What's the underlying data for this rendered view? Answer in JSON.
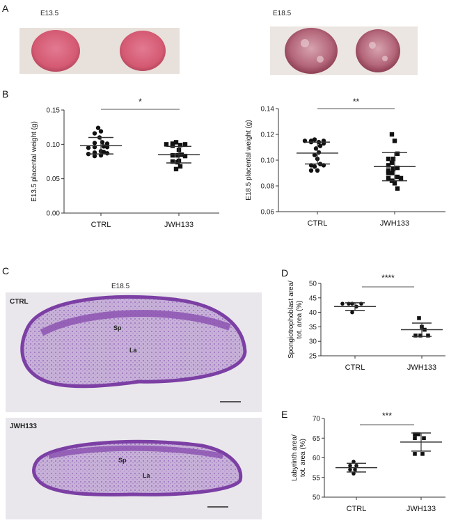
{
  "panels": {
    "a": "A",
    "b": "B",
    "c": "C",
    "d": "D",
    "e": "E"
  },
  "panel_a": {
    "left_label": "E13.5",
    "right_label": "E18.5"
  },
  "panel_c": {
    "title": "E18.5",
    "top_label": "CTRL",
    "bottom_label": "JWH133",
    "region_sp": "Sp",
    "region_la": "La"
  },
  "colors": {
    "placenta_e13": "#d9607a",
    "placenta_e18": "#b8707e",
    "stain": "#8a4fb0",
    "stain_light": "#c9b3d9",
    "sig_bar_light": "#aaaaaa"
  },
  "chart_data": [
    {
      "id": "b1",
      "type": "scatter",
      "ylabel": "E13.5 placental weight (g)",
      "categories": [
        "CTRL",
        "JWH133"
      ],
      "ylim": [
        0,
        0.15
      ],
      "yticks": [
        "0.00",
        "0.05",
        "0.10",
        "0.15"
      ],
      "significance": "*",
      "series": [
        {
          "marker": "circle",
          "values": [
            0.124,
            0.119,
            0.116,
            0.11,
            0.103,
            0.102,
            0.101,
            0.097,
            0.096,
            0.096,
            0.095,
            0.09,
            0.089,
            0.088,
            0.087,
            0.086,
            0.084,
            0.083
          ],
          "mean": 0.098,
          "sd": 0.012
        },
        {
          "marker": "square",
          "values": [
            0.103,
            0.101,
            0.1,
            0.1,
            0.099,
            0.098,
            0.092,
            0.085,
            0.084,
            0.084,
            0.083,
            0.076,
            0.075,
            0.074,
            0.068,
            0.064
          ],
          "mean": 0.085,
          "sd": 0.012
        }
      ]
    },
    {
      "id": "b2",
      "type": "scatter",
      "ylabel": "E18.5 placental weight (g)",
      "categories": [
        "CTRL",
        "JWH133"
      ],
      "ylim": [
        0.06,
        0.14
      ],
      "yticks": [
        "0.06",
        "0.08",
        "0.10",
        "0.12",
        "0.14"
      ],
      "significance": "**",
      "series": [
        {
          "marker": "circle",
          "values": [
            0.116,
            0.115,
            0.115,
            0.115,
            0.114,
            0.114,
            0.113,
            0.111,
            0.109,
            0.106,
            0.104,
            0.101,
            0.097,
            0.096,
            0.096,
            0.095,
            0.092,
            0.092
          ],
          "mean": 0.1055,
          "sd": 0.0085
        },
        {
          "marker": "square",
          "values": [
            0.12,
            0.115,
            0.105,
            0.101,
            0.101,
            0.098,
            0.096,
            0.094,
            0.093,
            0.092,
            0.09,
            0.09,
            0.087,
            0.086,
            0.086,
            0.084,
            0.082,
            0.078
          ],
          "mean": 0.095,
          "sd": 0.011
        }
      ]
    },
    {
      "id": "d",
      "type": "scatter",
      "ylabel": "Spongiotrophoblast area/ tot. area (%)",
      "categories": [
        "CTRL",
        "JWH133"
      ],
      "ylim": [
        25,
        50
      ],
      "yticks": [
        "25",
        "30",
        "35",
        "40",
        "45",
        "50"
      ],
      "significance": "****",
      "series": [
        {
          "marker": "circle",
          "values": [
            43,
            43,
            43,
            43,
            42,
            40
          ],
          "mean": 42,
          "sd": 1.3
        },
        {
          "marker": "square",
          "values": [
            38,
            35,
            34,
            32,
            32,
            32
          ],
          "mean": 34,
          "sd": 2.3
        }
      ]
    },
    {
      "id": "e",
      "type": "scatter",
      "ylabel": "Labyrinth area/ tot. area (%)",
      "categories": [
        "CTRL",
        "JWH133"
      ],
      "ylim": [
        50,
        70
      ],
      "yticks": [
        "50",
        "55",
        "60",
        "65",
        "70"
      ],
      "significance": "***",
      "series": [
        {
          "marker": "circle",
          "values": [
            59,
            58,
            58,
            57,
            57,
            56
          ],
          "mean": 57.5,
          "sd": 1.1
        },
        {
          "marker": "square",
          "values": [
            66,
            66,
            65,
            65,
            61,
            61
          ],
          "mean": 64,
          "sd": 2.3
        }
      ]
    }
  ]
}
